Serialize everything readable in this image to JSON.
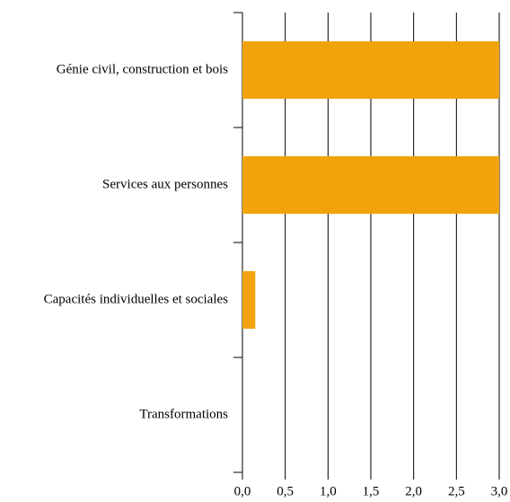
{
  "chart_data": {
    "type": "hbar",
    "categories": [
      "Génie civil, construction et bois",
      "Services aux personnes",
      "Capacités individuelles et sociales",
      "Transformations"
    ],
    "values": [
      3,
      3,
      0.15,
      0
    ],
    "color": "#f0a30a",
    "xlim": [
      0,
      3
    ],
    "xticks": [
      {
        "value": 0,
        "label": "0,0"
      },
      {
        "value": 0.5,
        "label": "0,5"
      },
      {
        "value": 1,
        "label": "1,0"
      },
      {
        "value": 1.5,
        "label": "1,5"
      },
      {
        "value": 2,
        "label": "2,0"
      },
      {
        "value": 2.5,
        "label": "2,5"
      },
      {
        "value": 3,
        "label": "3,0"
      }
    ],
    "grid": true
  }
}
